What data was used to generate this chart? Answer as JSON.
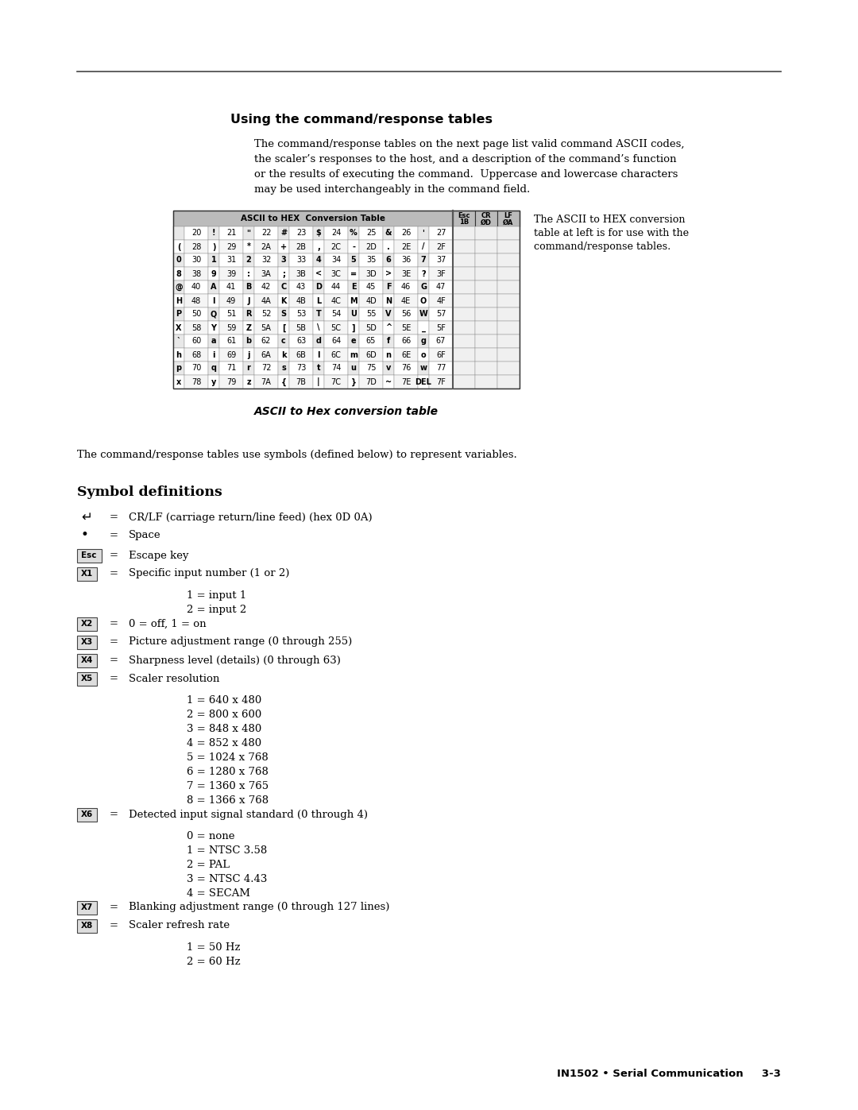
{
  "title_section": "Using the command/response tables",
  "intro_lines": [
    "The command/response tables on the next page list valid command ASCII codes,",
    "the scaler’s responses to the host, and a description of the command’s function",
    "or the results of executing the command.  Uppercase and lowercase characters",
    "may be used interchangeably in the command field."
  ],
  "table_caption": "ASCII to Hex conversion table",
  "table_note_lines": [
    "The ASCII to HEX conversion",
    "table at left is for use with the",
    "command/response tables."
  ],
  "symbols_intro": "The command/response tables use symbols (defined below) to represent variables.",
  "symbols_heading": "Symbol definitions",
  "table_rows": [
    [
      " ",
      "20",
      "!",
      "21",
      "\"",
      "22",
      "#",
      "23",
      "$",
      "24",
      "%",
      "25",
      "&",
      "26",
      "'",
      "27"
    ],
    [
      "(",
      "28",
      ")",
      "29",
      "*",
      "2A",
      "+",
      "2B",
      ",",
      "2C",
      "-",
      "2D",
      ".",
      "2E",
      "/",
      "2F"
    ],
    [
      "0",
      "30",
      "1",
      "31",
      "2",
      "32",
      "3",
      "33",
      "4",
      "34",
      "5",
      "35",
      "6",
      "36",
      "7",
      "37"
    ],
    [
      "8",
      "38",
      "9",
      "39",
      ":",
      "3A",
      ";",
      "3B",
      "<",
      "3C",
      "=",
      "3D",
      ">",
      "3E",
      "?",
      "3F"
    ],
    [
      "@",
      "40",
      "A",
      "41",
      "B",
      "42",
      "C",
      "43",
      "D",
      "44",
      "E",
      "45",
      "F",
      "46",
      "G",
      "47"
    ],
    [
      "H",
      "48",
      "I",
      "49",
      "J",
      "4A",
      "K",
      "4B",
      "L",
      "4C",
      "M",
      "4D",
      "N",
      "4E",
      "O",
      "4F"
    ],
    [
      "P",
      "50",
      "Q",
      "51",
      "R",
      "52",
      "S",
      "53",
      "T",
      "54",
      "U",
      "55",
      "V",
      "56",
      "W",
      "57"
    ],
    [
      "X",
      "58",
      "Y",
      "59",
      "Z",
      "5A",
      "[",
      "5B",
      "\\",
      "5C",
      "]",
      "5D",
      "^",
      "5E",
      "_",
      "5F"
    ],
    [
      "`",
      "60",
      "a",
      "61",
      "b",
      "62",
      "c",
      "63",
      "d",
      "64",
      "e",
      "65",
      "f",
      "66",
      "g",
      "67"
    ],
    [
      "h",
      "68",
      "i",
      "69",
      "j",
      "6A",
      "k",
      "6B",
      "l",
      "6C",
      "m",
      "6D",
      "n",
      "6E",
      "o",
      "6F"
    ],
    [
      "p",
      "70",
      "q",
      "71",
      "r",
      "72",
      "s",
      "73",
      "t",
      "74",
      "u",
      "75",
      "v",
      "76",
      "w",
      "77"
    ],
    [
      "x",
      "78",
      "y",
      "79",
      "z",
      "7A",
      "{",
      "7B",
      "|",
      "7C",
      "}",
      "7D",
      "~",
      "7E",
      "DEL",
      "7F"
    ]
  ],
  "footer_text": "IN1502 • Serial Communication     3-3",
  "bg_color": "#ffffff",
  "text_color": "#000000"
}
